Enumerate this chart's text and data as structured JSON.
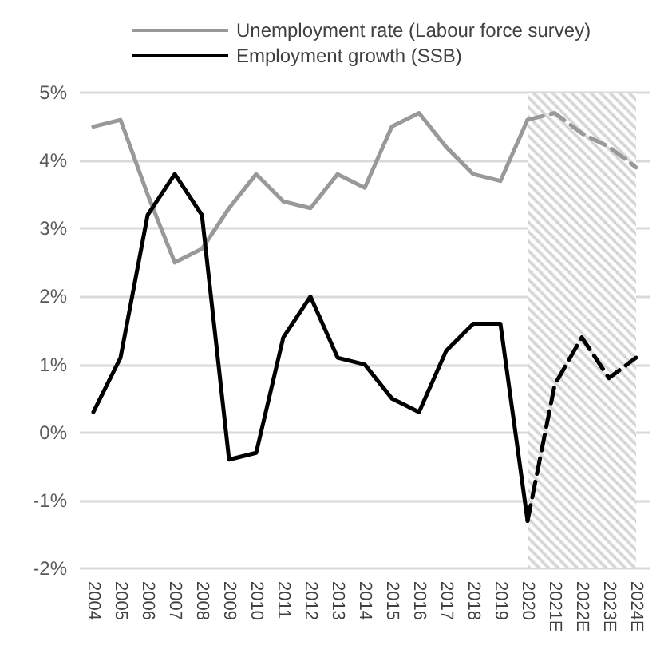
{
  "chart_data": {
    "type": "line",
    "categories": [
      "2004",
      "2005",
      "2006",
      "2007",
      "2008",
      "2009",
      "2010",
      "2011",
      "2012",
      "2013",
      "2014",
      "2015",
      "2016",
      "2017",
      "2018",
      "2019",
      "2020",
      "2021E",
      "2022E",
      "2023E",
      "2024E"
    ],
    "series": [
      {
        "name": "Unemployment rate (Labour force survey)",
        "color": "#999999",
        "values": [
          4.5,
          4.6,
          3.5,
          2.5,
          2.7,
          3.3,
          3.8,
          3.4,
          3.3,
          3.8,
          3.6,
          4.5,
          4.7,
          4.2,
          3.8,
          3.7,
          4.6,
          null,
          null,
          null,
          null
        ]
      },
      {
        "name": "Employment growth (SSB)",
        "color": "#000000",
        "values": [
          0.3,
          1.1,
          3.2,
          3.8,
          3.2,
          -0.4,
          -0.3,
          1.4,
          2.0,
          1.1,
          1.0,
          0.5,
          0.3,
          1.2,
          1.6,
          1.6,
          -1.3,
          null,
          null,
          null,
          null
        ]
      },
      {
        "color": "#999999",
        "line_style": "dashed",
        "values": [
          null,
          null,
          null,
          null,
          null,
          null,
          null,
          null,
          null,
          null,
          null,
          null,
          null,
          null,
          null,
          null,
          4.6,
          4.7,
          4.4,
          4.2,
          3.9
        ]
      },
      {
        "color": "#000000",
        "line_style": "dashed",
        "values": [
          null,
          null,
          null,
          null,
          null,
          null,
          null,
          null,
          null,
          null,
          null,
          null,
          null,
          null,
          null,
          null,
          -1.3,
          0.7,
          1.4,
          0.8,
          1.1
        ]
      }
    ],
    "ylim": [
      -2,
      5
    ],
    "yticks": [
      {
        "value": -2,
        "label": "-2%"
      },
      {
        "value": -1,
        "label": "-1%"
      },
      {
        "value": 0,
        "label": "0%"
      },
      {
        "value": 1,
        "label": "1%"
      },
      {
        "value": 2,
        "label": "2%"
      },
      {
        "value": 3,
        "label": "3%"
      },
      {
        "value": 4,
        "label": "4%"
      },
      {
        "value": 5,
        "label": "5%"
      }
    ],
    "bands": [
      {
        "axis": "x",
        "from": "2020",
        "to": "2024E",
        "color": "#c8c8c8"
      }
    ],
    "grid": "y",
    "legend": "top",
    "marker": "none",
    "line_style": "solid"
  }
}
